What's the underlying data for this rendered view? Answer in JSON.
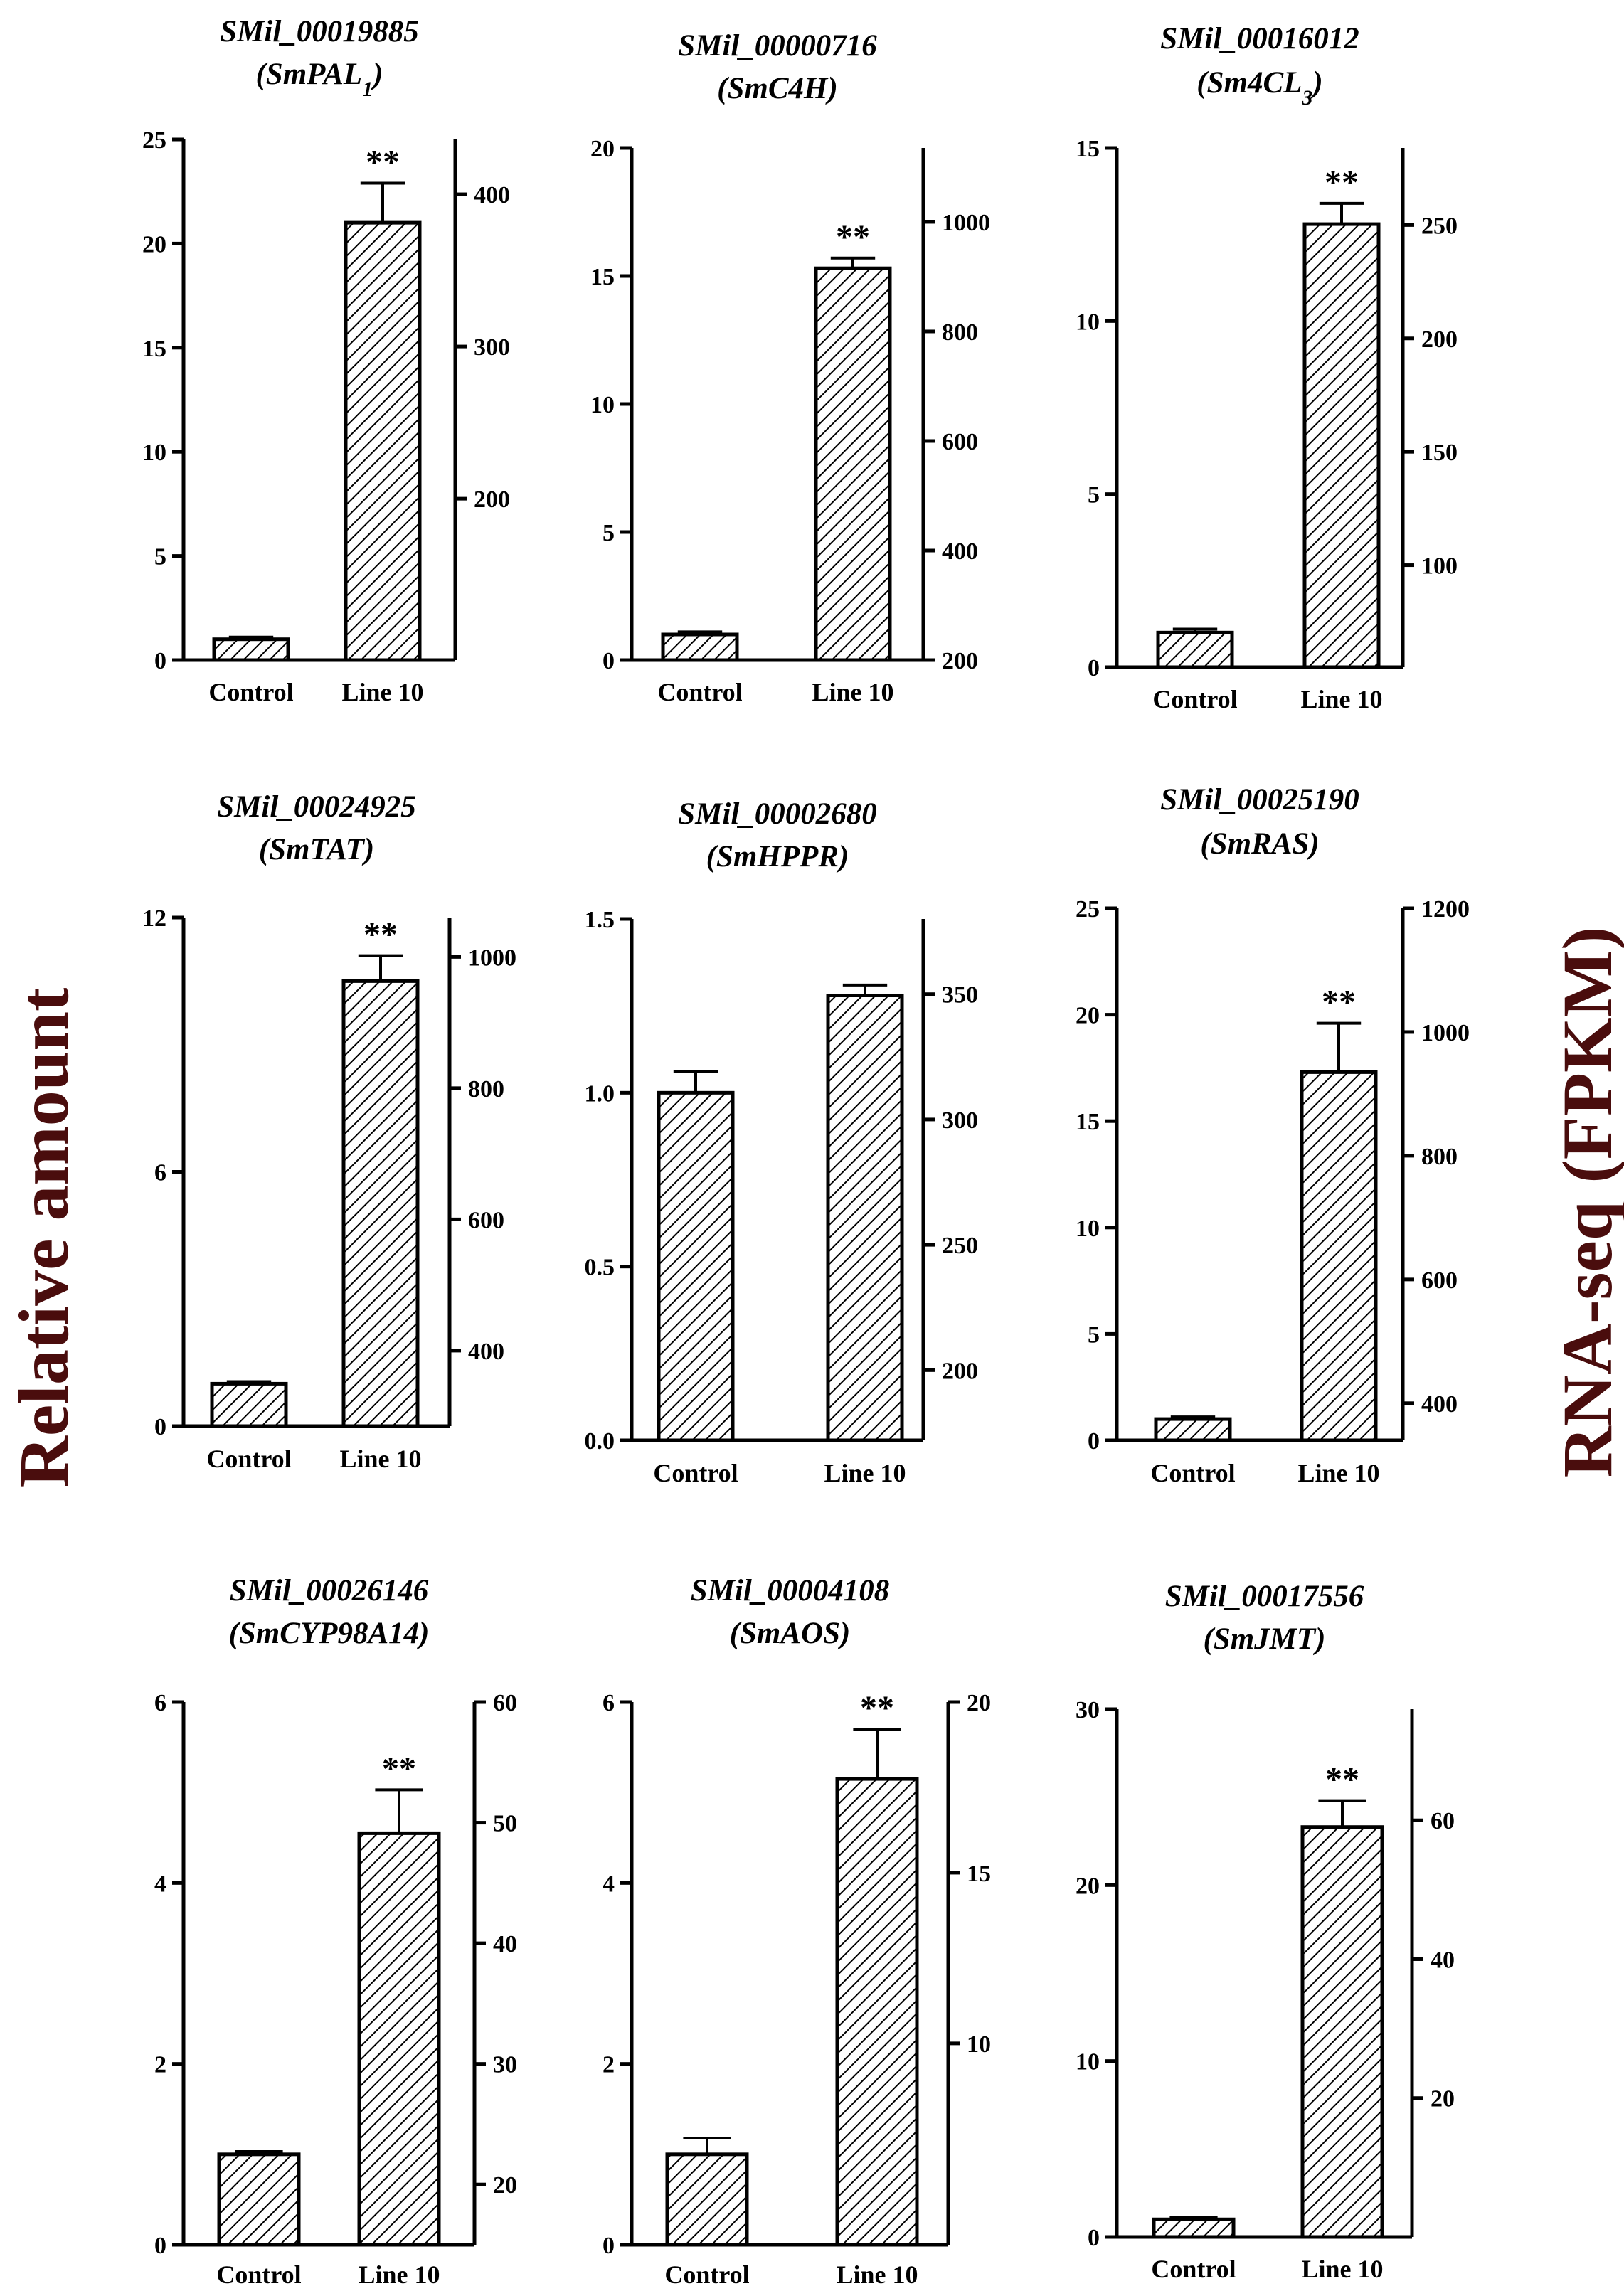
{
  "figure": {
    "left_label": "Relative amount",
    "right_label": "RNA-seq (FPKM)"
  },
  "chart_data": [
    {
      "type": "bar",
      "title": "SMil_00019885",
      "subtitle": "(SmPAL",
      "subtitle_sub": "1",
      "subtitle_end": ")",
      "categories": [
        "Control",
        "Line 10"
      ],
      "values": [
        1.0,
        21.0
      ],
      "errors": [
        0.1,
        1.9
      ],
      "significance": [
        "",
        "**"
      ],
      "ylim": [
        0,
        25
      ],
      "yticks": [
        0,
        5,
        10,
        15,
        20,
        25
      ],
      "y2lim": [
        94,
        436
      ],
      "y2ticks": [
        200,
        300,
        400
      ]
    },
    {
      "type": "bar",
      "title": "SMil_00000716",
      "subtitle": "(SmC4H)",
      "subtitle_sub": "",
      "subtitle_end": "",
      "categories": [
        "Control",
        "Line 10"
      ],
      "values": [
        1.0,
        15.3
      ],
      "errors": [
        0.1,
        0.4
      ],
      "significance": [
        "",
        "**"
      ],
      "ylim": [
        0,
        20
      ],
      "yticks": [
        0,
        5,
        10,
        15,
        20
      ],
      "y2lim": [
        200,
        1135
      ],
      "y2ticks": [
        200,
        400,
        600,
        800,
        1000
      ]
    },
    {
      "type": "bar",
      "title": "SMil_00016012",
      "subtitle": "(Sm4CL",
      "subtitle_sub": "3",
      "subtitle_end": ")",
      "categories": [
        "Control",
        "Line 10"
      ],
      "values": [
        1.0,
        12.8
      ],
      "errors": [
        0.1,
        0.6
      ],
      "significance": [
        "",
        "**"
      ],
      "ylim": [
        0,
        15
      ],
      "yticks": [
        0,
        5,
        10,
        15
      ],
      "y2lim": [
        55,
        284
      ],
      "y2ticks": [
        100,
        150,
        200,
        250
      ]
    },
    {
      "type": "bar",
      "title": "SMil_00024925",
      "subtitle": "(SmTAT)",
      "subtitle_sub": "",
      "subtitle_end": "",
      "categories": [
        "Control",
        "Line 10"
      ],
      "values": [
        1.0,
        10.5
      ],
      "errors": [
        0.05,
        0.6
      ],
      "significance": [
        "",
        "**"
      ],
      "ylim": [
        0,
        12
      ],
      "yticks": [
        0,
        6,
        12
      ],
      "y2lim": [
        285,
        1060
      ],
      "y2ticks": [
        400,
        600,
        800,
        1000
      ]
    },
    {
      "type": "bar",
      "title": "SMil_00002680",
      "subtitle": "(SmHPPR)",
      "subtitle_sub": "",
      "subtitle_end": "",
      "categories": [
        "Control",
        "Line 10"
      ],
      "values": [
        1.0,
        1.28
      ],
      "errors": [
        0.06,
        0.03
      ],
      "significance": [
        "",
        ""
      ],
      "ylim": [
        0,
        1.5
      ],
      "yticks": [
        0.0,
        0.5,
        1.0,
        1.5
      ],
      "ytick_labels": [
        "0.0",
        "0.5",
        "1.0",
        "1.5"
      ],
      "y2lim": [
        172,
        380
      ],
      "y2ticks": [
        200,
        250,
        300,
        350
      ]
    },
    {
      "type": "bar",
      "title": "SMil_00025190",
      "subtitle": "(SmRAS)",
      "subtitle_sub": "",
      "subtitle_end": "",
      "categories": [
        "Control",
        "Line 10"
      ],
      "values": [
        1.0,
        17.3
      ],
      "errors": [
        0.1,
        2.3
      ],
      "significance": [
        "",
        "**"
      ],
      "ylim": [
        0,
        25
      ],
      "yticks": [
        0,
        5,
        10,
        15,
        20,
        25
      ],
      "y2lim": [
        340,
        1200
      ],
      "y2ticks": [
        400,
        600,
        800,
        1000,
        1200
      ]
    },
    {
      "type": "bar",
      "title": "SMil_00026146",
      "subtitle": "(SmCYP98A14)",
      "subtitle_sub": "",
      "subtitle_end": "",
      "categories": [
        "Control",
        "Line 10"
      ],
      "values": [
        1.0,
        4.55
      ],
      "errors": [
        0.03,
        0.48
      ],
      "significance": [
        "",
        "**"
      ],
      "ylim": [
        0,
        6
      ],
      "yticks": [
        0,
        2,
        4,
        6
      ],
      "y2lim": [
        15,
        60
      ],
      "y2ticks": [
        20,
        30,
        40,
        50,
        60
      ]
    },
    {
      "type": "bar",
      "title": "SMil_00004108",
      "subtitle": "(SmAOS)",
      "subtitle_sub": "",
      "subtitle_end": "",
      "categories": [
        "Control",
        "Line 10"
      ],
      "values": [
        1.0,
        5.15
      ],
      "errors": [
        0.18,
        0.55
      ],
      "significance": [
        "",
        "**"
      ],
      "ylim": [
        0,
        6
      ],
      "yticks": [
        0,
        2,
        4,
        6
      ],
      "y2lim": [
        4.1,
        20
      ],
      "y2ticks": [
        10,
        15,
        20
      ]
    },
    {
      "type": "bar",
      "title": "SMil_00017556",
      "subtitle": "(SmJMT)",
      "subtitle_sub": "",
      "subtitle_end": "",
      "categories": [
        "Control",
        "Line 10"
      ],
      "values": [
        1.0,
        23.3
      ],
      "errors": [
        0.1,
        1.5
      ],
      "significance": [
        "",
        "**"
      ],
      "ylim": [
        0,
        30
      ],
      "yticks": [
        0,
        10,
        20,
        30
      ],
      "y2lim": [
        0,
        76
      ],
      "y2ticks": [
        20,
        40,
        60
      ]
    }
  ]
}
